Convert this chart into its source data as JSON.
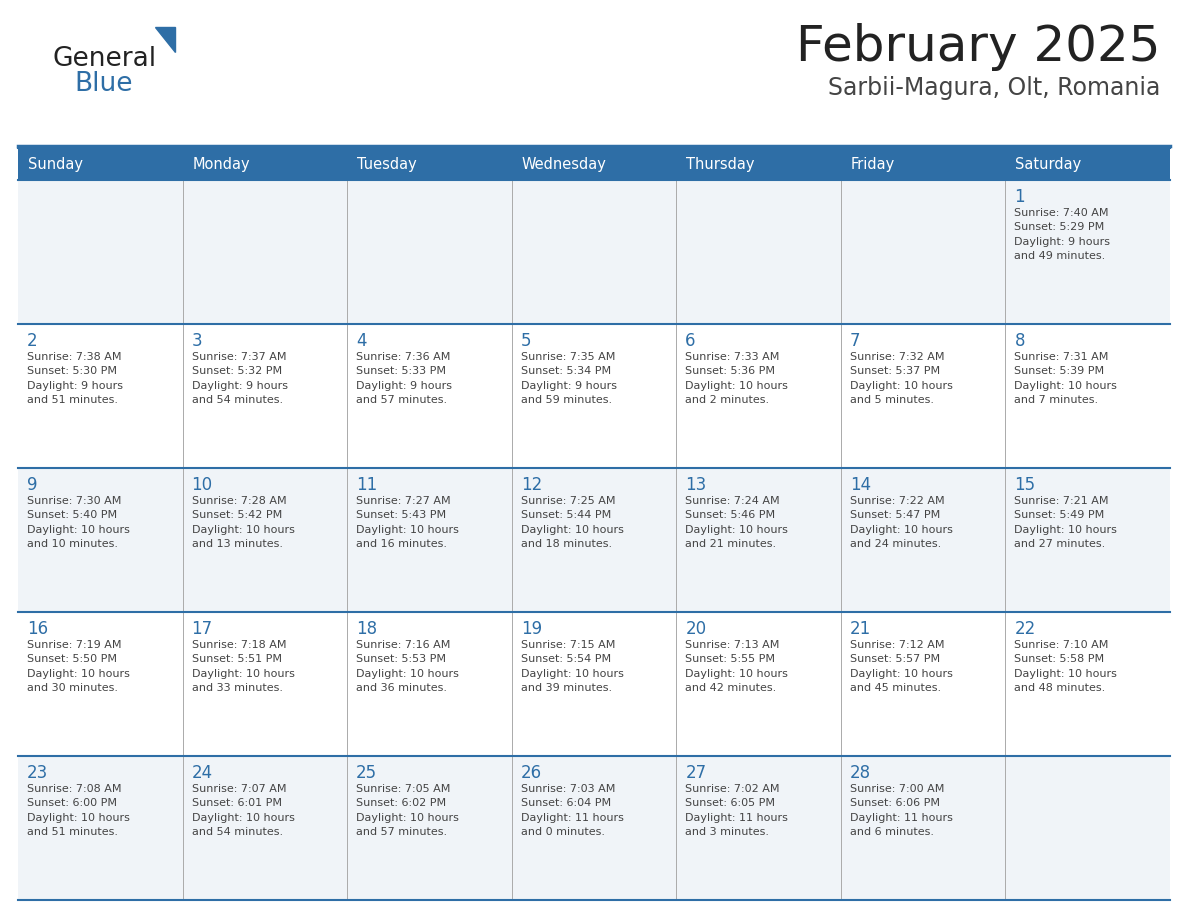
{
  "title": "February 2025",
  "subtitle": "Sarbii-Magura, Olt, Romania",
  "header_color": "#2E6EA6",
  "header_text_color": "#FFFFFF",
  "cell_bg_light": "#F0F4F8",
  "cell_bg_white": "#FFFFFF",
  "day_number_color": "#2E6EA6",
  "text_color": "#444444",
  "line_color": "#2E6EA6",
  "days_of_week": [
    "Sunday",
    "Monday",
    "Tuesday",
    "Wednesday",
    "Thursday",
    "Friday",
    "Saturday"
  ],
  "weeks": [
    [
      {
        "day": null,
        "info": null
      },
      {
        "day": null,
        "info": null
      },
      {
        "day": null,
        "info": null
      },
      {
        "day": null,
        "info": null
      },
      {
        "day": null,
        "info": null
      },
      {
        "day": null,
        "info": null
      },
      {
        "day": 1,
        "info": "Sunrise: 7:40 AM\nSunset: 5:29 PM\nDaylight: 9 hours\nand 49 minutes."
      }
    ],
    [
      {
        "day": 2,
        "info": "Sunrise: 7:38 AM\nSunset: 5:30 PM\nDaylight: 9 hours\nand 51 minutes."
      },
      {
        "day": 3,
        "info": "Sunrise: 7:37 AM\nSunset: 5:32 PM\nDaylight: 9 hours\nand 54 minutes."
      },
      {
        "day": 4,
        "info": "Sunrise: 7:36 AM\nSunset: 5:33 PM\nDaylight: 9 hours\nand 57 minutes."
      },
      {
        "day": 5,
        "info": "Sunrise: 7:35 AM\nSunset: 5:34 PM\nDaylight: 9 hours\nand 59 minutes."
      },
      {
        "day": 6,
        "info": "Sunrise: 7:33 AM\nSunset: 5:36 PM\nDaylight: 10 hours\nand 2 minutes."
      },
      {
        "day": 7,
        "info": "Sunrise: 7:32 AM\nSunset: 5:37 PM\nDaylight: 10 hours\nand 5 minutes."
      },
      {
        "day": 8,
        "info": "Sunrise: 7:31 AM\nSunset: 5:39 PM\nDaylight: 10 hours\nand 7 minutes."
      }
    ],
    [
      {
        "day": 9,
        "info": "Sunrise: 7:30 AM\nSunset: 5:40 PM\nDaylight: 10 hours\nand 10 minutes."
      },
      {
        "day": 10,
        "info": "Sunrise: 7:28 AM\nSunset: 5:42 PM\nDaylight: 10 hours\nand 13 minutes."
      },
      {
        "day": 11,
        "info": "Sunrise: 7:27 AM\nSunset: 5:43 PM\nDaylight: 10 hours\nand 16 minutes."
      },
      {
        "day": 12,
        "info": "Sunrise: 7:25 AM\nSunset: 5:44 PM\nDaylight: 10 hours\nand 18 minutes."
      },
      {
        "day": 13,
        "info": "Sunrise: 7:24 AM\nSunset: 5:46 PM\nDaylight: 10 hours\nand 21 minutes."
      },
      {
        "day": 14,
        "info": "Sunrise: 7:22 AM\nSunset: 5:47 PM\nDaylight: 10 hours\nand 24 minutes."
      },
      {
        "day": 15,
        "info": "Sunrise: 7:21 AM\nSunset: 5:49 PM\nDaylight: 10 hours\nand 27 minutes."
      }
    ],
    [
      {
        "day": 16,
        "info": "Sunrise: 7:19 AM\nSunset: 5:50 PM\nDaylight: 10 hours\nand 30 minutes."
      },
      {
        "day": 17,
        "info": "Sunrise: 7:18 AM\nSunset: 5:51 PM\nDaylight: 10 hours\nand 33 minutes."
      },
      {
        "day": 18,
        "info": "Sunrise: 7:16 AM\nSunset: 5:53 PM\nDaylight: 10 hours\nand 36 minutes."
      },
      {
        "day": 19,
        "info": "Sunrise: 7:15 AM\nSunset: 5:54 PM\nDaylight: 10 hours\nand 39 minutes."
      },
      {
        "day": 20,
        "info": "Sunrise: 7:13 AM\nSunset: 5:55 PM\nDaylight: 10 hours\nand 42 minutes."
      },
      {
        "day": 21,
        "info": "Sunrise: 7:12 AM\nSunset: 5:57 PM\nDaylight: 10 hours\nand 45 minutes."
      },
      {
        "day": 22,
        "info": "Sunrise: 7:10 AM\nSunset: 5:58 PM\nDaylight: 10 hours\nand 48 minutes."
      }
    ],
    [
      {
        "day": 23,
        "info": "Sunrise: 7:08 AM\nSunset: 6:00 PM\nDaylight: 10 hours\nand 51 minutes."
      },
      {
        "day": 24,
        "info": "Sunrise: 7:07 AM\nSunset: 6:01 PM\nDaylight: 10 hours\nand 54 minutes."
      },
      {
        "day": 25,
        "info": "Sunrise: 7:05 AM\nSunset: 6:02 PM\nDaylight: 10 hours\nand 57 minutes."
      },
      {
        "day": 26,
        "info": "Sunrise: 7:03 AM\nSunset: 6:04 PM\nDaylight: 11 hours\nand 0 minutes."
      },
      {
        "day": 27,
        "info": "Sunrise: 7:02 AM\nSunset: 6:05 PM\nDaylight: 11 hours\nand 3 minutes."
      },
      {
        "day": 28,
        "info": "Sunrise: 7:00 AM\nSunset: 6:06 PM\nDaylight: 11 hours\nand 6 minutes."
      },
      {
        "day": null,
        "info": null
      }
    ]
  ]
}
